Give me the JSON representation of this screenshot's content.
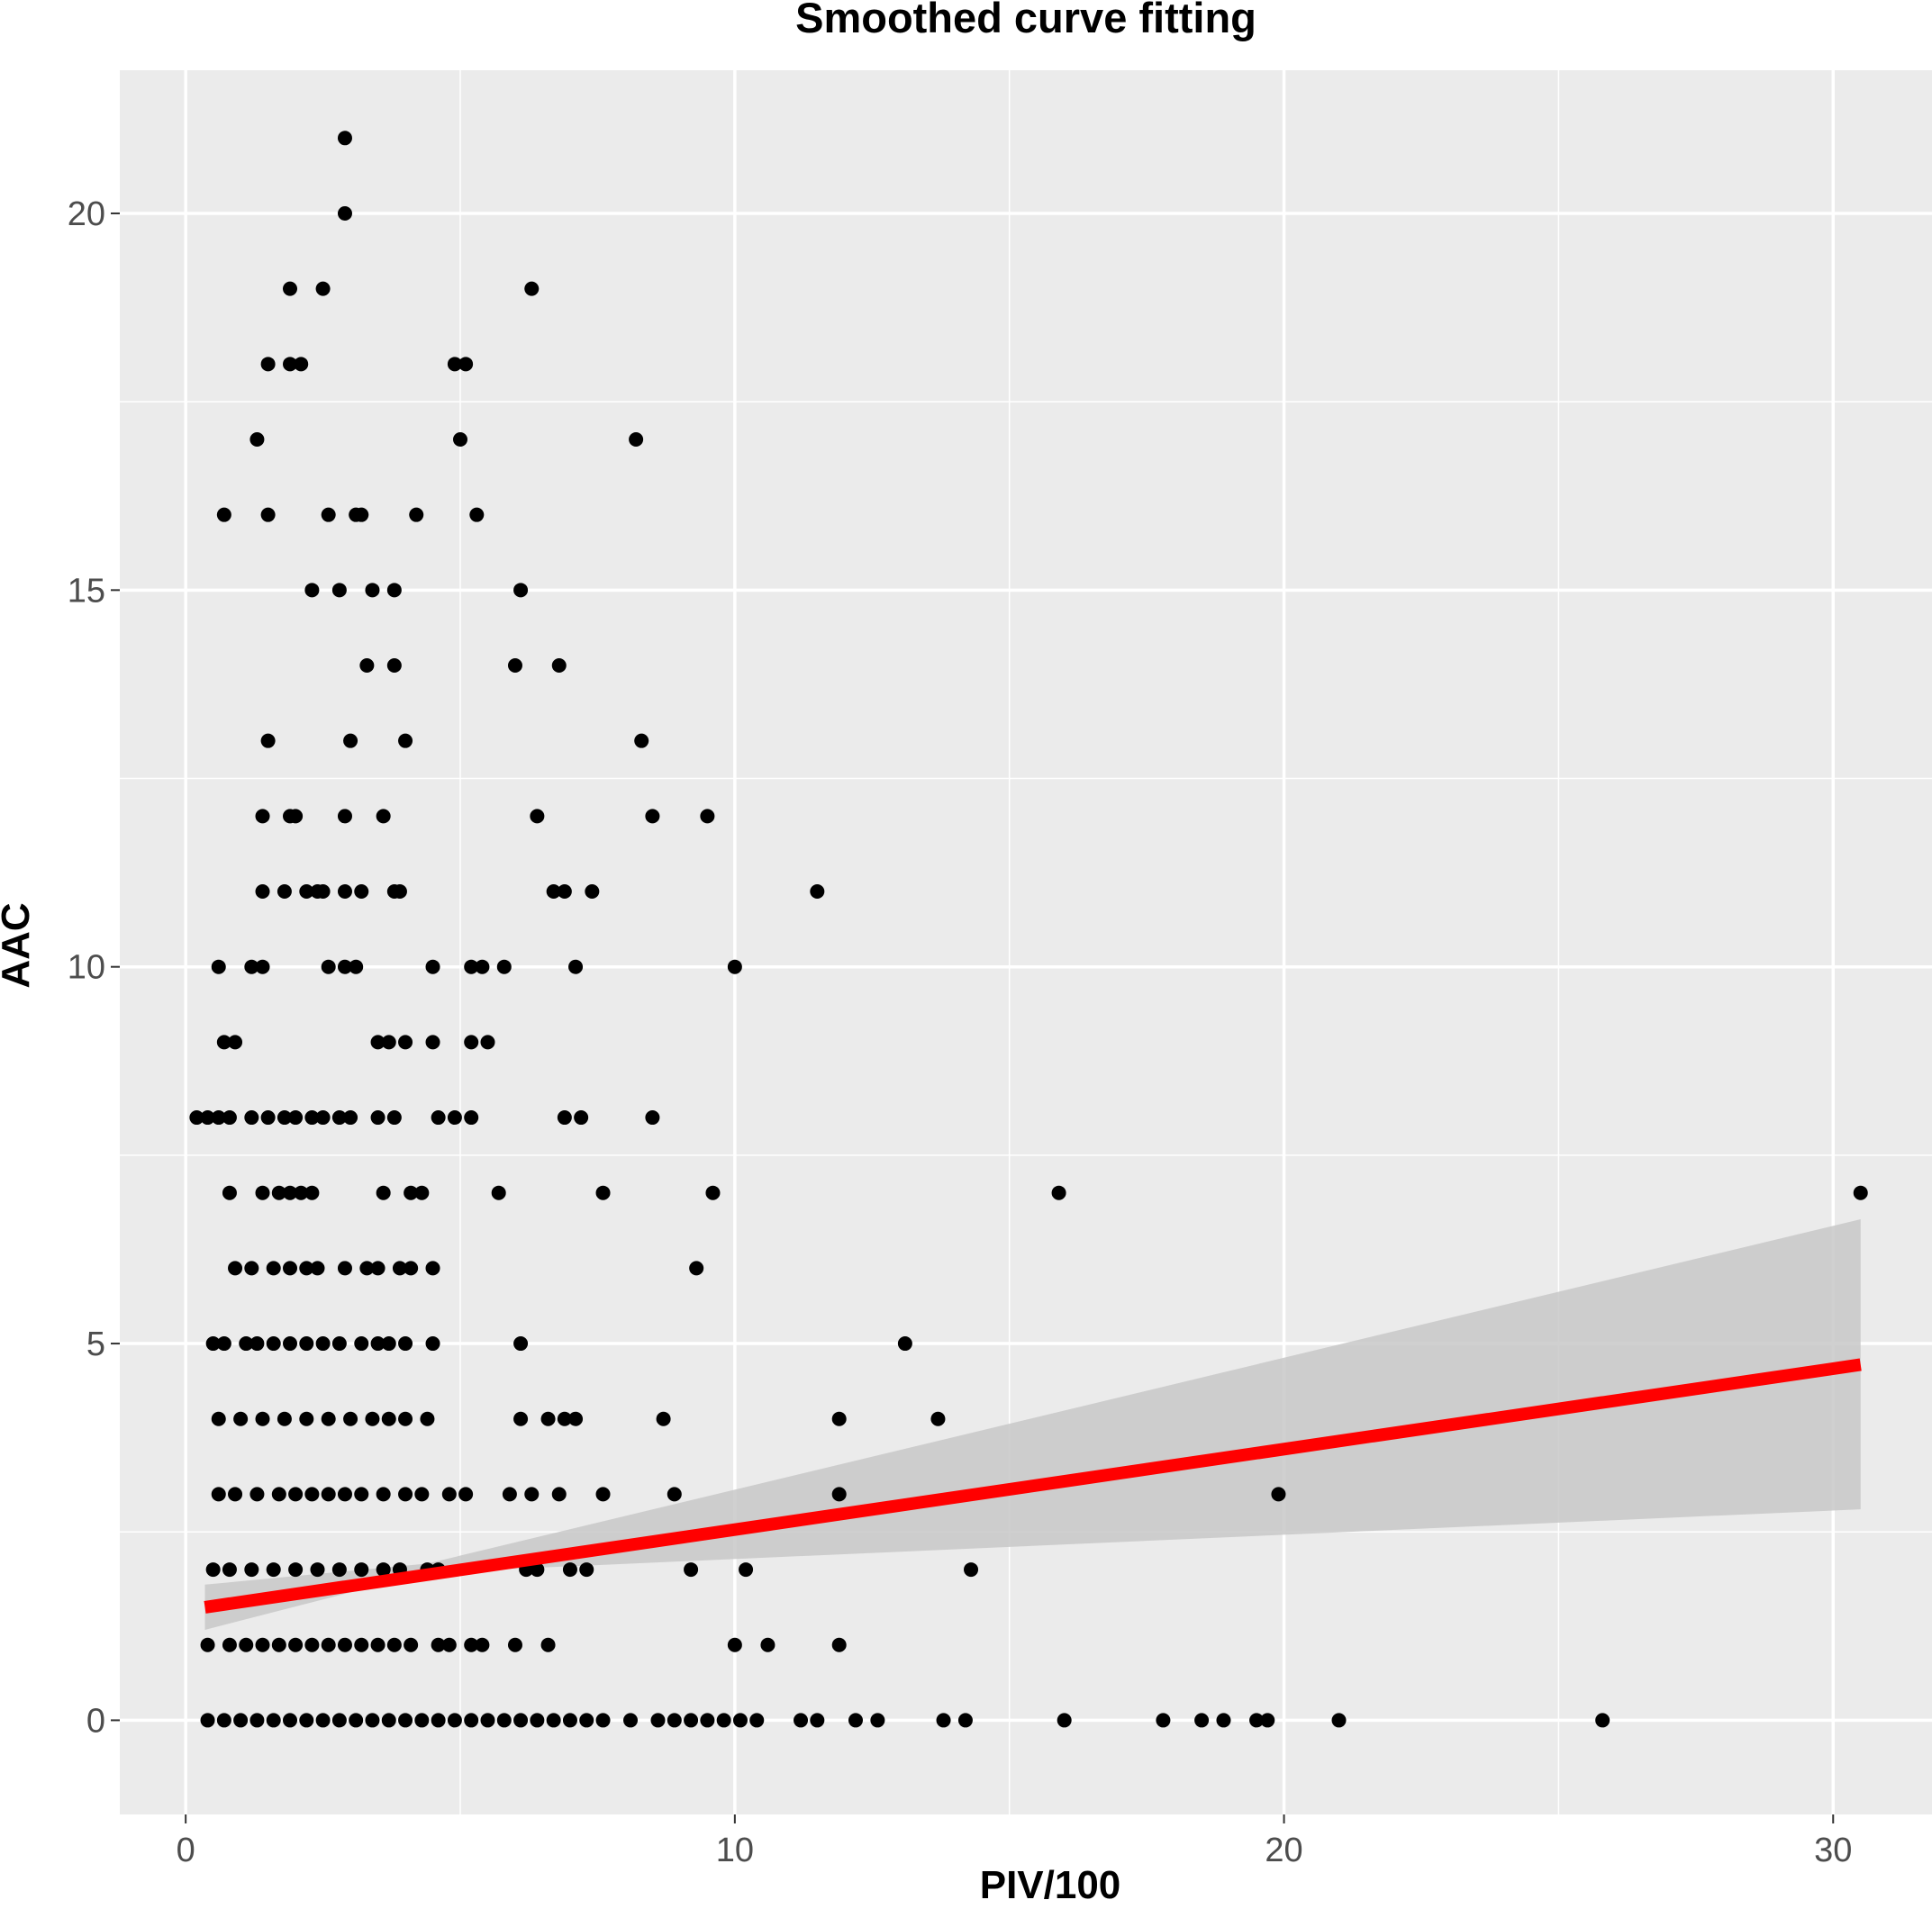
{
  "chart_data": {
    "type": "scatter",
    "title": "Smoothed curve fitting",
    "xlabel": "PIV/100",
    "ylabel": "AAC",
    "xlim": [
      -1.2,
      31.8
    ],
    "ylim": [
      -1.25,
      21.9
    ],
    "x_ticks": [
      0,
      10,
      20,
      30
    ],
    "y_ticks": [
      0,
      5,
      10,
      15,
      20
    ],
    "grid": true,
    "legend": "none",
    "colors": {
      "panel_background": "#ebebeb",
      "grid": "#ffffff",
      "points": "#000000",
      "fit_line": "#ff0000",
      "confidence_band": "#c8c8c8"
    },
    "fit_line": {
      "x": [
        0.35,
        30.5
      ],
      "y": [
        1.5,
        4.72
      ]
    },
    "confidence_band": {
      "x": [
        0.35,
        4.4,
        30.5
      ],
      "lower": [
        1.2,
        1.96,
        2.8
      ],
      "upper": [
        1.8,
        2.08,
        6.65
      ]
    },
    "points": [
      [
        2.9,
        21
      ],
      [
        2.9,
        20
      ],
      [
        1.9,
        19
      ],
      [
        2.5,
        19
      ],
      [
        6.3,
        19
      ],
      [
        1.5,
        18
      ],
      [
        1.9,
        18
      ],
      [
        2.1,
        18
      ],
      [
        4.9,
        18
      ],
      [
        5.1,
        18
      ],
      [
        1.3,
        17
      ],
      [
        5.0,
        17
      ],
      [
        8.2,
        17
      ],
      [
        0.7,
        16
      ],
      [
        1.5,
        16
      ],
      [
        2.6,
        16
      ],
      [
        3.1,
        16
      ],
      [
        3.2,
        16
      ],
      [
        4.2,
        16
      ],
      [
        5.3,
        16
      ],
      [
        2.3,
        15
      ],
      [
        2.8,
        15
      ],
      [
        3.4,
        15
      ],
      [
        3.8,
        15
      ],
      [
        6.1,
        15
      ],
      [
        3.3,
        14
      ],
      [
        3.8,
        14
      ],
      [
        6.0,
        14
      ],
      [
        6.8,
        14
      ],
      [
        1.5,
        13
      ],
      [
        3.0,
        13
      ],
      [
        4.0,
        13
      ],
      [
        8.3,
        13
      ],
      [
        1.4,
        12
      ],
      [
        1.9,
        12
      ],
      [
        2.0,
        12
      ],
      [
        2.9,
        12
      ],
      [
        3.6,
        12
      ],
      [
        6.4,
        12
      ],
      [
        8.5,
        12
      ],
      [
        9.5,
        12
      ],
      [
        1.4,
        11
      ],
      [
        1.8,
        11
      ],
      [
        2.2,
        11
      ],
      [
        2.4,
        11
      ],
      [
        2.5,
        11
      ],
      [
        2.9,
        11
      ],
      [
        3.2,
        11
      ],
      [
        3.8,
        11
      ],
      [
        3.9,
        11
      ],
      [
        6.7,
        11
      ],
      [
        6.9,
        11
      ],
      [
        7.4,
        11
      ],
      [
        11.5,
        11
      ],
      [
        0.6,
        10
      ],
      [
        1.2,
        10
      ],
      [
        1.4,
        10
      ],
      [
        2.6,
        10
      ],
      [
        2.9,
        10
      ],
      [
        3.1,
        10
      ],
      [
        4.5,
        10
      ],
      [
        5.2,
        10
      ],
      [
        5.4,
        10
      ],
      [
        5.8,
        10
      ],
      [
        7.1,
        10
      ],
      [
        10.0,
        10
      ],
      [
        0.7,
        9
      ],
      [
        0.9,
        9
      ],
      [
        3.5,
        9
      ],
      [
        3.7,
        9
      ],
      [
        4.0,
        9
      ],
      [
        4.5,
        9
      ],
      [
        5.2,
        9
      ],
      [
        5.5,
        9
      ],
      [
        0.2,
        8
      ],
      [
        0.4,
        8
      ],
      [
        0.6,
        8
      ],
      [
        0.8,
        8
      ],
      [
        1.2,
        8
      ],
      [
        1.5,
        8
      ],
      [
        1.8,
        8
      ],
      [
        2.0,
        8
      ],
      [
        2.3,
        8
      ],
      [
        2.5,
        8
      ],
      [
        2.8,
        8
      ],
      [
        3.0,
        8
      ],
      [
        3.5,
        8
      ],
      [
        3.8,
        8
      ],
      [
        4.6,
        8
      ],
      [
        4.9,
        8
      ],
      [
        5.2,
        8
      ],
      [
        6.9,
        8
      ],
      [
        7.2,
        8
      ],
      [
        8.5,
        8
      ],
      [
        0.8,
        7
      ],
      [
        1.4,
        7
      ],
      [
        1.7,
        7
      ],
      [
        1.9,
        7
      ],
      [
        2.1,
        7
      ],
      [
        2.3,
        7
      ],
      [
        3.6,
        7
      ],
      [
        4.1,
        7
      ],
      [
        4.3,
        7
      ],
      [
        5.7,
        7
      ],
      [
        7.6,
        7
      ],
      [
        9.6,
        7
      ],
      [
        15.9,
        7
      ],
      [
        30.5,
        7
      ],
      [
        0.9,
        6
      ],
      [
        1.2,
        6
      ],
      [
        1.6,
        6
      ],
      [
        1.9,
        6
      ],
      [
        2.2,
        6
      ],
      [
        2.4,
        6
      ],
      [
        2.9,
        6
      ],
      [
        3.3,
        6
      ],
      [
        3.5,
        6
      ],
      [
        3.9,
        6
      ],
      [
        4.1,
        6
      ],
      [
        4.5,
        6
      ],
      [
        9.3,
        6
      ],
      [
        0.5,
        5
      ],
      [
        0.7,
        5
      ],
      [
        1.1,
        5
      ],
      [
        1.3,
        5
      ],
      [
        1.6,
        5
      ],
      [
        1.9,
        5
      ],
      [
        2.2,
        5
      ],
      [
        2.5,
        5
      ],
      [
        2.8,
        5
      ],
      [
        3.2,
        5
      ],
      [
        3.5,
        5
      ],
      [
        3.7,
        5
      ],
      [
        4.0,
        5
      ],
      [
        4.5,
        5
      ],
      [
        6.1,
        5
      ],
      [
        13.1,
        5
      ],
      [
        0.6,
        4
      ],
      [
        1.0,
        4
      ],
      [
        1.4,
        4
      ],
      [
        1.8,
        4
      ],
      [
        2.2,
        4
      ],
      [
        2.6,
        4
      ],
      [
        3.0,
        4
      ],
      [
        3.4,
        4
      ],
      [
        3.7,
        4
      ],
      [
        4.0,
        4
      ],
      [
        4.4,
        4
      ],
      [
        6.1,
        4
      ],
      [
        6.6,
        4
      ],
      [
        6.9,
        4
      ],
      [
        7.1,
        4
      ],
      [
        8.7,
        4
      ],
      [
        11.9,
        4
      ],
      [
        13.7,
        4
      ],
      [
        0.6,
        3
      ],
      [
        0.9,
        3
      ],
      [
        1.3,
        3
      ],
      [
        1.7,
        3
      ],
      [
        2.0,
        3
      ],
      [
        2.3,
        3
      ],
      [
        2.6,
        3
      ],
      [
        2.9,
        3
      ],
      [
        3.2,
        3
      ],
      [
        3.6,
        3
      ],
      [
        4.0,
        3
      ],
      [
        4.3,
        3
      ],
      [
        4.8,
        3
      ],
      [
        5.1,
        3
      ],
      [
        5.9,
        3
      ],
      [
        6.3,
        3
      ],
      [
        6.8,
        3
      ],
      [
        7.6,
        3
      ],
      [
        8.9,
        3
      ],
      [
        11.9,
        3
      ],
      [
        19.9,
        3
      ],
      [
        0.5,
        2
      ],
      [
        0.8,
        2
      ],
      [
        1.2,
        2
      ],
      [
        1.6,
        2
      ],
      [
        2.0,
        2
      ],
      [
        2.4,
        2
      ],
      [
        2.8,
        2
      ],
      [
        3.2,
        2
      ],
      [
        3.6,
        2
      ],
      [
        3.9,
        2
      ],
      [
        4.4,
        2
      ],
      [
        4.6,
        2
      ],
      [
        6.2,
        2
      ],
      [
        6.4,
        2
      ],
      [
        7.0,
        2
      ],
      [
        7.3,
        2
      ],
      [
        9.2,
        2
      ],
      [
        10.2,
        2
      ],
      [
        14.3,
        2
      ],
      [
        0.4,
        1
      ],
      [
        0.8,
        1
      ],
      [
        1.1,
        1
      ],
      [
        1.4,
        1
      ],
      [
        1.7,
        1
      ],
      [
        2.0,
        1
      ],
      [
        2.3,
        1
      ],
      [
        2.6,
        1
      ],
      [
        2.9,
        1
      ],
      [
        3.2,
        1
      ],
      [
        3.5,
        1
      ],
      [
        3.8,
        1
      ],
      [
        4.1,
        1
      ],
      [
        4.6,
        1
      ],
      [
        4.8,
        1
      ],
      [
        5.2,
        1
      ],
      [
        5.4,
        1
      ],
      [
        6.0,
        1
      ],
      [
        6.6,
        1
      ],
      [
        10.0,
        1
      ],
      [
        10.6,
        1
      ],
      [
        11.9,
        1
      ],
      [
        0.4,
        0
      ],
      [
        0.7,
        0
      ],
      [
        1.0,
        0
      ],
      [
        1.3,
        0
      ],
      [
        1.6,
        0
      ],
      [
        1.9,
        0
      ],
      [
        2.2,
        0
      ],
      [
        2.5,
        0
      ],
      [
        2.8,
        0
      ],
      [
        3.1,
        0
      ],
      [
        3.4,
        0
      ],
      [
        3.7,
        0
      ],
      [
        4.0,
        0
      ],
      [
        4.3,
        0
      ],
      [
        4.6,
        0
      ],
      [
        4.9,
        0
      ],
      [
        5.2,
        0
      ],
      [
        5.5,
        0
      ],
      [
        5.8,
        0
      ],
      [
        6.1,
        0
      ],
      [
        6.4,
        0
      ],
      [
        6.7,
        0
      ],
      [
        7.0,
        0
      ],
      [
        7.3,
        0
      ],
      [
        7.6,
        0
      ],
      [
        8.1,
        0
      ],
      [
        8.6,
        0
      ],
      [
        8.9,
        0
      ],
      [
        9.2,
        0
      ],
      [
        9.5,
        0
      ],
      [
        9.8,
        0
      ],
      [
        10.1,
        0
      ],
      [
        10.4,
        0
      ],
      [
        11.2,
        0
      ],
      [
        11.5,
        0
      ],
      [
        12.2,
        0
      ],
      [
        12.6,
        0
      ],
      [
        13.8,
        0
      ],
      [
        14.2,
        0
      ],
      [
        16.0,
        0
      ],
      [
        17.8,
        0
      ],
      [
        18.5,
        0
      ],
      [
        18.9,
        0
      ],
      [
        19.5,
        0
      ],
      [
        19.7,
        0
      ],
      [
        21.0,
        0
      ],
      [
        25.8,
        0
      ]
    ]
  }
}
